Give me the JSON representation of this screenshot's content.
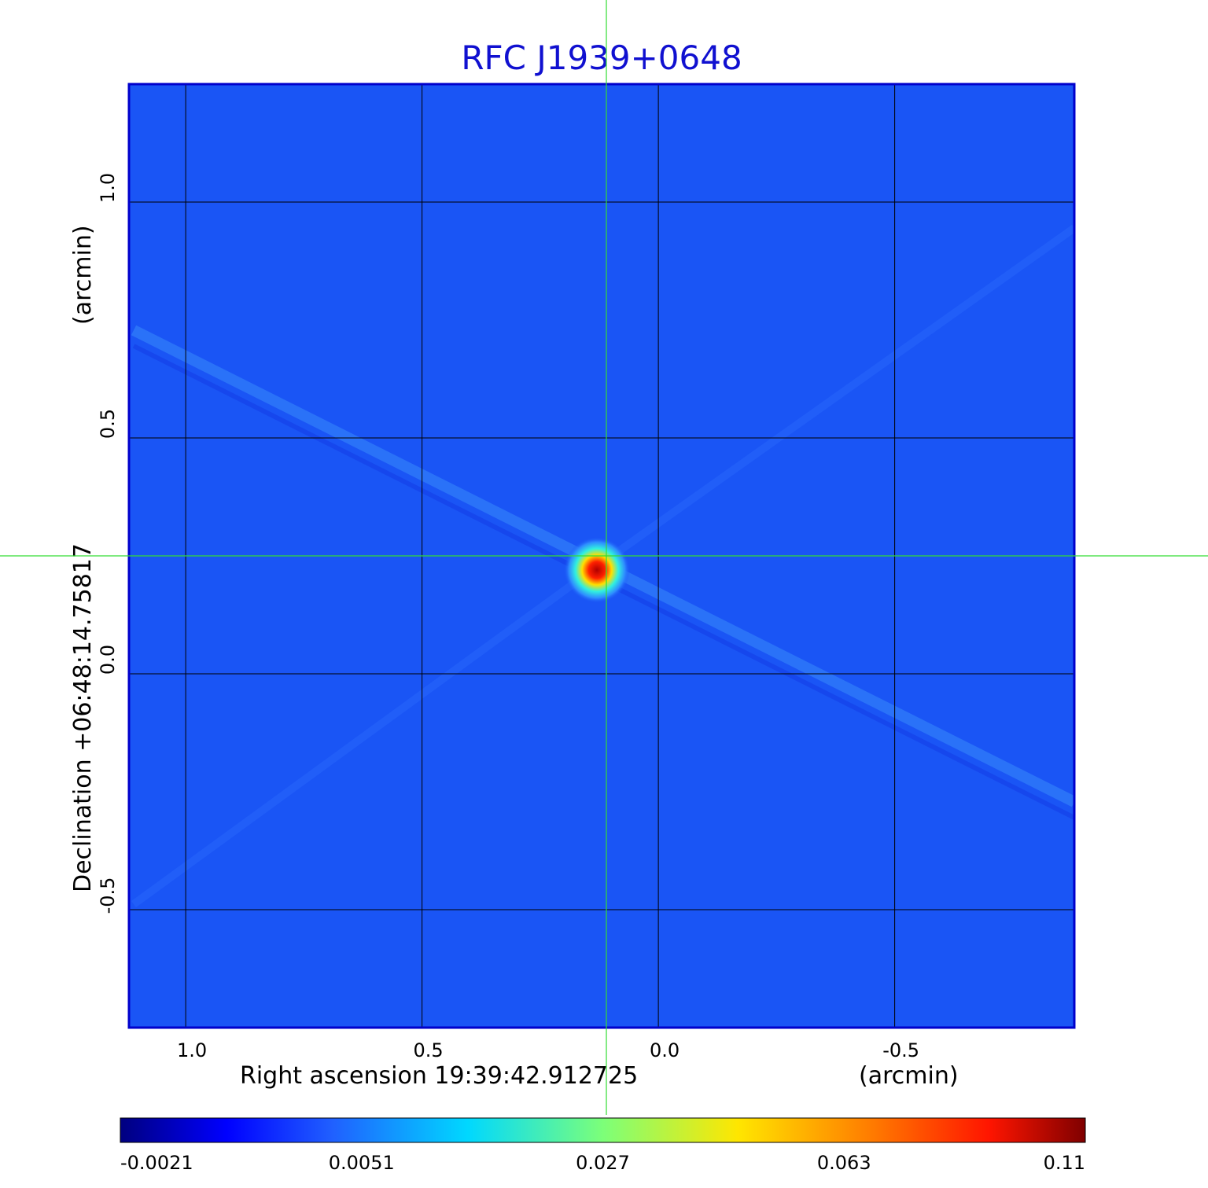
{
  "chart_data": {
    "type": "heatmap",
    "title": "RFC J1939+0648",
    "xlabel": "Right ascension  19:39:42.912725",
    "xunit": "(arcmin)",
    "ylabel": "Declination  +06:48:14.75817",
    "yunit": "(arcmin)",
    "x_reversed": true,
    "xlim": [
      1.12,
      -0.88
    ],
    "ylim": [
      -0.75,
      1.25
    ],
    "x_ticks": [
      {
        "value": 1.0,
        "label": "1.0"
      },
      {
        "value": 0.5,
        "label": "0.5"
      },
      {
        "value": 0.0,
        "label": "0.0"
      },
      {
        "value": -0.5,
        "label": "-0.5"
      }
    ],
    "y_ticks": [
      {
        "value": 1.0,
        "label": "1.0"
      },
      {
        "value": 0.5,
        "label": "0.5"
      },
      {
        "value": 0.0,
        "label": "0.0"
      },
      {
        "value": -0.5,
        "label": "-0.5"
      }
    ],
    "grid": true,
    "crosshair": {
      "x": 0.11,
      "y": 0.25
    },
    "source_peak": {
      "x": 0.13,
      "y": 0.22,
      "value": 0.11
    },
    "colormap": "jet",
    "colorbar": {
      "placement": "bottom",
      "ticks": [
        {
          "frac": 0.0,
          "label": "-0.0021"
        },
        {
          "frac": 0.25,
          "label": "0.0051"
        },
        {
          "frac": 0.5,
          "label": "0.027"
        },
        {
          "frac": 0.75,
          "label": "0.063"
        },
        {
          "frac": 1.0,
          "label": "0.11"
        }
      ]
    },
    "background_level": 0.0,
    "colors": {
      "title": "#1010d0",
      "frame": "#0000cc",
      "grid": "#000000",
      "crosshair": "#33dd33",
      "background_fill": "#1a55f5"
    }
  }
}
